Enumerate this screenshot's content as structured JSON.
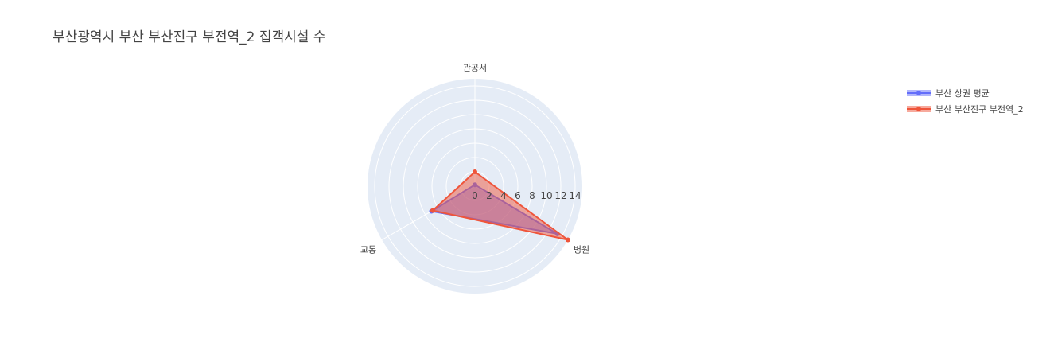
{
  "title": "부산광역시 부산 부산진구 부전역_2 집객시설 수",
  "chart_data": {
    "type": "radar",
    "title": "부산광역시 부산 부산진구 부전역_2 집객시설 수",
    "categories": [
      "관공서",
      "병원",
      "교통"
    ],
    "radial_range": [
      0,
      15
    ],
    "radial_ticks": [
      0,
      2,
      4,
      6,
      8,
      10,
      12,
      14
    ],
    "series": [
      {
        "name": "부산 상권 평균",
        "values": [
          0.2,
          13.3,
          7.0
        ],
        "color": "#636efa"
      },
      {
        "name": "부산 부산진구 부전역_2",
        "values": [
          2.0,
          15.0,
          6.8
        ],
        "color": "#ef553b"
      }
    ],
    "legend_position": "top-right",
    "grid": true
  }
}
